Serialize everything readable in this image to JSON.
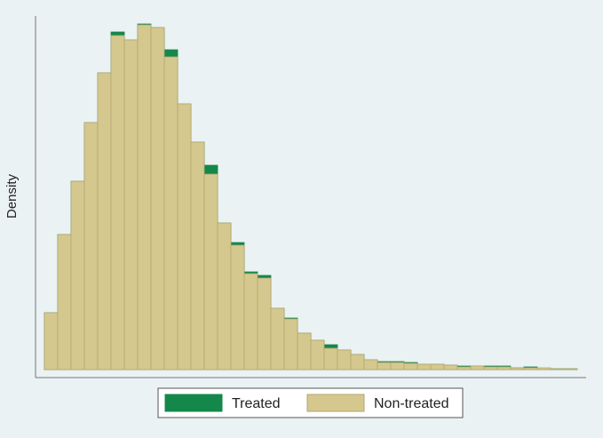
{
  "chart_data": {
    "type": "histogram",
    "y_label": "Density",
    "bins": [
      0,
      1,
      2,
      3,
      4,
      5,
      6,
      7,
      8,
      9,
      10,
      11,
      12,
      13,
      14,
      15,
      16,
      17,
      18,
      19,
      20,
      21,
      22,
      23,
      24,
      25,
      26,
      27,
      28,
      29,
      30,
      31,
      32,
      33,
      34,
      35,
      36,
      37,
      38,
      39,
      40
    ],
    "series": [
      {
        "name": "Treated",
        "color": "#14874a",
        "values": [
          64,
          152,
          212,
          278,
          334,
          380,
          371,
          389,
          385,
          360,
          299,
          256,
          230,
          165,
          143,
          110,
          106,
          69,
          58,
          41,
          33,
          28,
          22,
          17,
          11,
          9,
          9,
          8,
          6,
          6,
          5,
          4,
          4,
          4,
          4,
          2,
          3,
          1,
          1,
          1
        ]
      },
      {
        "name": "Non-treated",
        "color": "#d5c88e",
        "values": [
          64,
          152,
          212,
          278,
          334,
          376,
          371,
          388,
          385,
          352,
          299,
          256,
          220,
          165,
          140,
          108,
          103,
          69,
          57,
          41,
          33,
          24,
          22,
          17,
          11,
          8,
          8,
          7,
          6,
          6,
          5,
          3,
          4,
          3,
          3,
          2,
          2,
          2,
          1,
          1
        ]
      }
    ],
    "xlim": [
      -0.667,
      40.667
    ],
    "ylim": [
      -9,
      398
    ]
  }
}
